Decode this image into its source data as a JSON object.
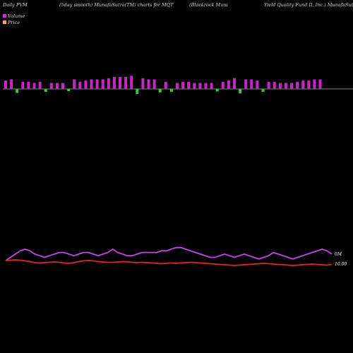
{
  "header": {
    "left": "Daily PVM",
    "center1": "(5day smooth) MunafaSutra(TM) charts for MQT",
    "center2": "(Blackrock Muni",
    "right": "Yield Quality Fund II, Inc.) MunafaSutra"
  },
  "legend": [
    {
      "label": "Volume",
      "color": "#cc33cc"
    },
    {
      "label": "Price",
      "color": "#ff9966"
    }
  ],
  "colors": {
    "up_bar": "#cc22cc",
    "down_bar": "#33cc33",
    "volume_line": "#cc44ee",
    "price_line": "#ee2222",
    "baseline": "#aaaaaa"
  },
  "chart_data": [
    {
      "type": "bar",
      "subtype": "volume-direction bars",
      "series": [
        {
          "name": "Volume",
          "values": [
            7,
            8,
            8,
            6,
            6,
            5,
            6,
            6,
            5,
            5,
            5,
            4,
            8,
            6,
            7,
            8,
            8,
            8,
            9,
            10,
            10,
            10,
            11,
            10,
            9,
            8,
            8,
            7,
            6,
            6,
            5,
            6,
            6,
            5,
            5,
            5,
            5,
            5,
            6,
            7,
            9,
            9,
            8,
            8,
            7,
            6,
            6,
            6,
            5,
            5,
            5,
            6,
            7,
            7,
            8,
            8
          ]
        },
        {
          "name": "direction",
          "values": [
            1,
            1,
            -1,
            1,
            1,
            1,
            1,
            -1,
            1,
            1,
            1,
            -1,
            1,
            1,
            1,
            1,
            1,
            1,
            1,
            1,
            1,
            1,
            1,
            -1,
            1,
            1,
            1,
            -1,
            1,
            -1,
            1,
            1,
            1,
            1,
            1,
            1,
            1,
            -1,
            1,
            1,
            1,
            -1,
            1,
            1,
            1,
            -1,
            1,
            1,
            1,
            1,
            1,
            1,
            1,
            1,
            1,
            1
          ]
        }
      ]
    },
    {
      "type": "line",
      "x": [
        1,
        2,
        3,
        4,
        5,
        6,
        7,
        8,
        9,
        10,
        11,
        12,
        13,
        14,
        15,
        16,
        17,
        18,
        19,
        20,
        21,
        22,
        23,
        24,
        25,
        26,
        27,
        28,
        29,
        30,
        31,
        32,
        33,
        34,
        35,
        36,
        37,
        38,
        39,
        40,
        41,
        42,
        43,
        44,
        45,
        46,
        47,
        48,
        49,
        50,
        51,
        52,
        53,
        54,
        55,
        56,
        57,
        58,
        59,
        60,
        61,
        62,
        63,
        64,
        65,
        66,
        67,
        68
      ],
      "series": [
        {
          "name": "Volume",
          "values": [
            3,
            5,
            7,
            9,
            10,
            9,
            7,
            6,
            5,
            6,
            7,
            8,
            8,
            7,
            6,
            7,
            8,
            8,
            7,
            6,
            7,
            8,
            10,
            8,
            7,
            6,
            6,
            7,
            8,
            8,
            8,
            8,
            9,
            9,
            10,
            11,
            11,
            10,
            9,
            8,
            7,
            6,
            5,
            5,
            6,
            7,
            6,
            5,
            6,
            7,
            6,
            5,
            4,
            5,
            6,
            8,
            7,
            6,
            5,
            4,
            5,
            6,
            7,
            8,
            9,
            10,
            9,
            7
          ]
        },
        {
          "name": "Price",
          "values": [
            10.11,
            10.12,
            10.13,
            10.12,
            10.1,
            10.08,
            10.05,
            10.04,
            10.05,
            10.06,
            10.07,
            10.06,
            10.04,
            10.03,
            10.05,
            10.08,
            10.1,
            10.11,
            10.1,
            10.08,
            10.07,
            10.06,
            10.06,
            10.07,
            10.08,
            10.07,
            10.06,
            10.05,
            10.06,
            10.05,
            10.04,
            10.03,
            10.02,
            10.03,
            10.04,
            10.03,
            10.04,
            10.05,
            10.06,
            10.05,
            10.04,
            10.03,
            10.02,
            10.01,
            10.0,
            9.99,
            9.98,
            9.97,
            9.98,
            9.99,
            10.0,
            10.01,
            10.02,
            10.03,
            10.02,
            10.01,
            10.0,
            9.99,
            9.98,
            9.97,
            9.98,
            9.99,
            10.0,
            10.01,
            10.0,
            9.99,
            9.98,
            10.0
          ]
        }
      ],
      "annotations": [
        "0M",
        "10.00"
      ]
    }
  ]
}
